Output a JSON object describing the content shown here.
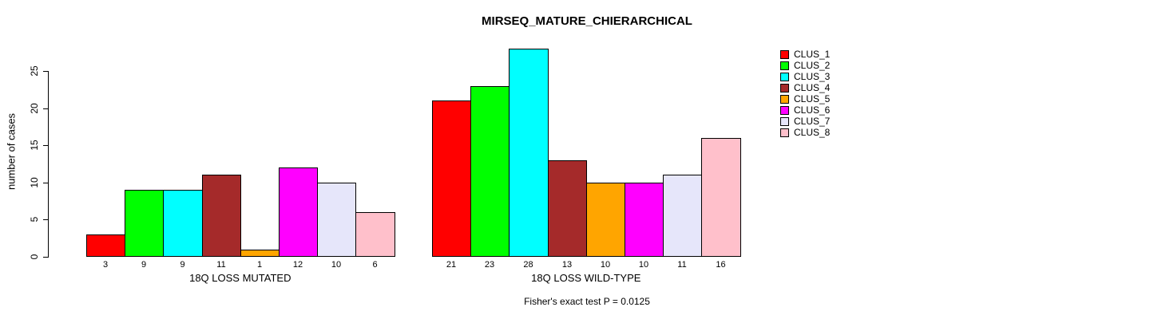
{
  "title": "MIRSEQ_MATURE_CHIERARCHICAL",
  "caption": "Fisher's exact test P = 0.0125",
  "y_axis": {
    "label": "number of cases",
    "ticks": [
      0,
      5,
      10,
      15,
      20,
      25
    ]
  },
  "legend": {
    "items": [
      {
        "label": "CLUS_1",
        "color": "#FF0000"
      },
      {
        "label": "CLUS_2",
        "color": "#00FF00"
      },
      {
        "label": "CLUS_3",
        "color": "#00FFFF"
      },
      {
        "label": "CLUS_4",
        "color": "#A52A2A"
      },
      {
        "label": "CLUS_5",
        "color": "#FFA500"
      },
      {
        "label": "CLUS_6",
        "color": "#FF00FF"
      },
      {
        "label": "CLUS_7",
        "color": "#E6E6FA"
      },
      {
        "label": "CLUS_8",
        "color": "#FFC0CB"
      }
    ]
  },
  "chart_data": {
    "type": "bar",
    "title": "MIRSEQ_MATURE_CHIERARCHICAL",
    "ylabel": "number of cases",
    "ylim": [
      0,
      28
    ],
    "yticks": [
      0,
      5,
      10,
      15,
      20,
      25
    ],
    "grid": false,
    "legend_position": "right",
    "series_labels": [
      "CLUS_1",
      "CLUS_2",
      "CLUS_3",
      "CLUS_4",
      "CLUS_5",
      "CLUS_6",
      "CLUS_7",
      "CLUS_8"
    ],
    "series_colors": [
      "#FF0000",
      "#00FF00",
      "#00FFFF",
      "#A52A2A",
      "#FFA500",
      "#FF00FF",
      "#E6E6FA",
      "#FFC0CB"
    ],
    "groups": [
      {
        "label": "18Q LOSS MUTATED",
        "values": [
          3,
          9,
          9,
          11,
          1,
          12,
          10,
          6
        ]
      },
      {
        "label": "18Q LOSS WILD-TYPE",
        "values": [
          21,
          23,
          28,
          13,
          10,
          10,
          11,
          16
        ]
      }
    ],
    "bar_value_labels_shown": true,
    "annotation": "Fisher's exact test P = 0.0125"
  }
}
